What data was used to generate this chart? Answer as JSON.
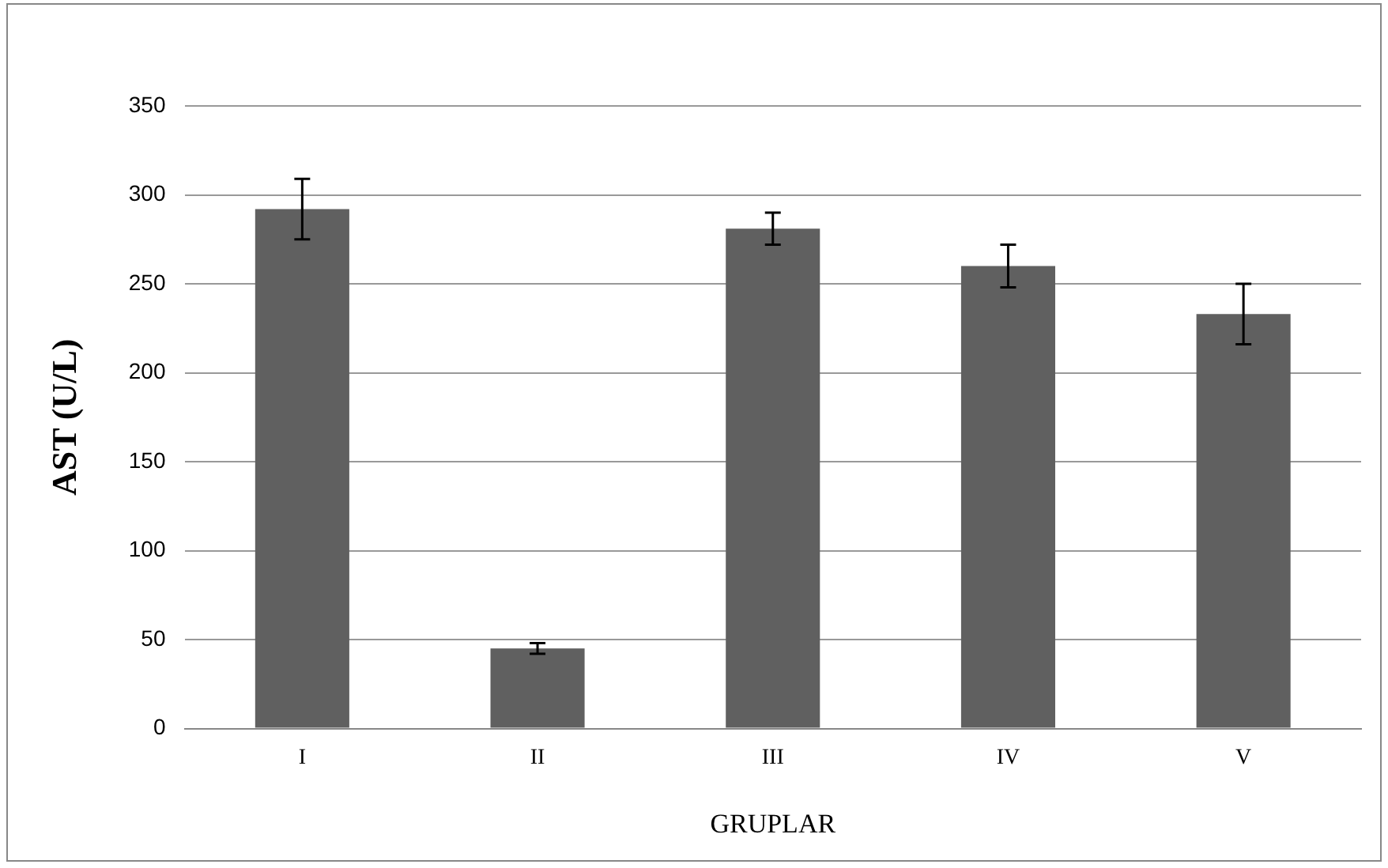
{
  "chart_data": {
    "type": "bar",
    "xlabel": "GRUPLAR",
    "ylabel": "AST (U/L)",
    "categories": [
      "I",
      "II",
      "III",
      "IV",
      "V"
    ],
    "values": [
      292,
      45,
      281,
      260,
      233
    ],
    "errors": [
      17,
      3,
      9,
      12,
      17
    ],
    "color": "#606060",
    "ylim": [
      0,
      350
    ],
    "yticks": [
      0,
      50,
      100,
      150,
      200,
      250,
      300,
      350
    ],
    "grid": "y"
  }
}
